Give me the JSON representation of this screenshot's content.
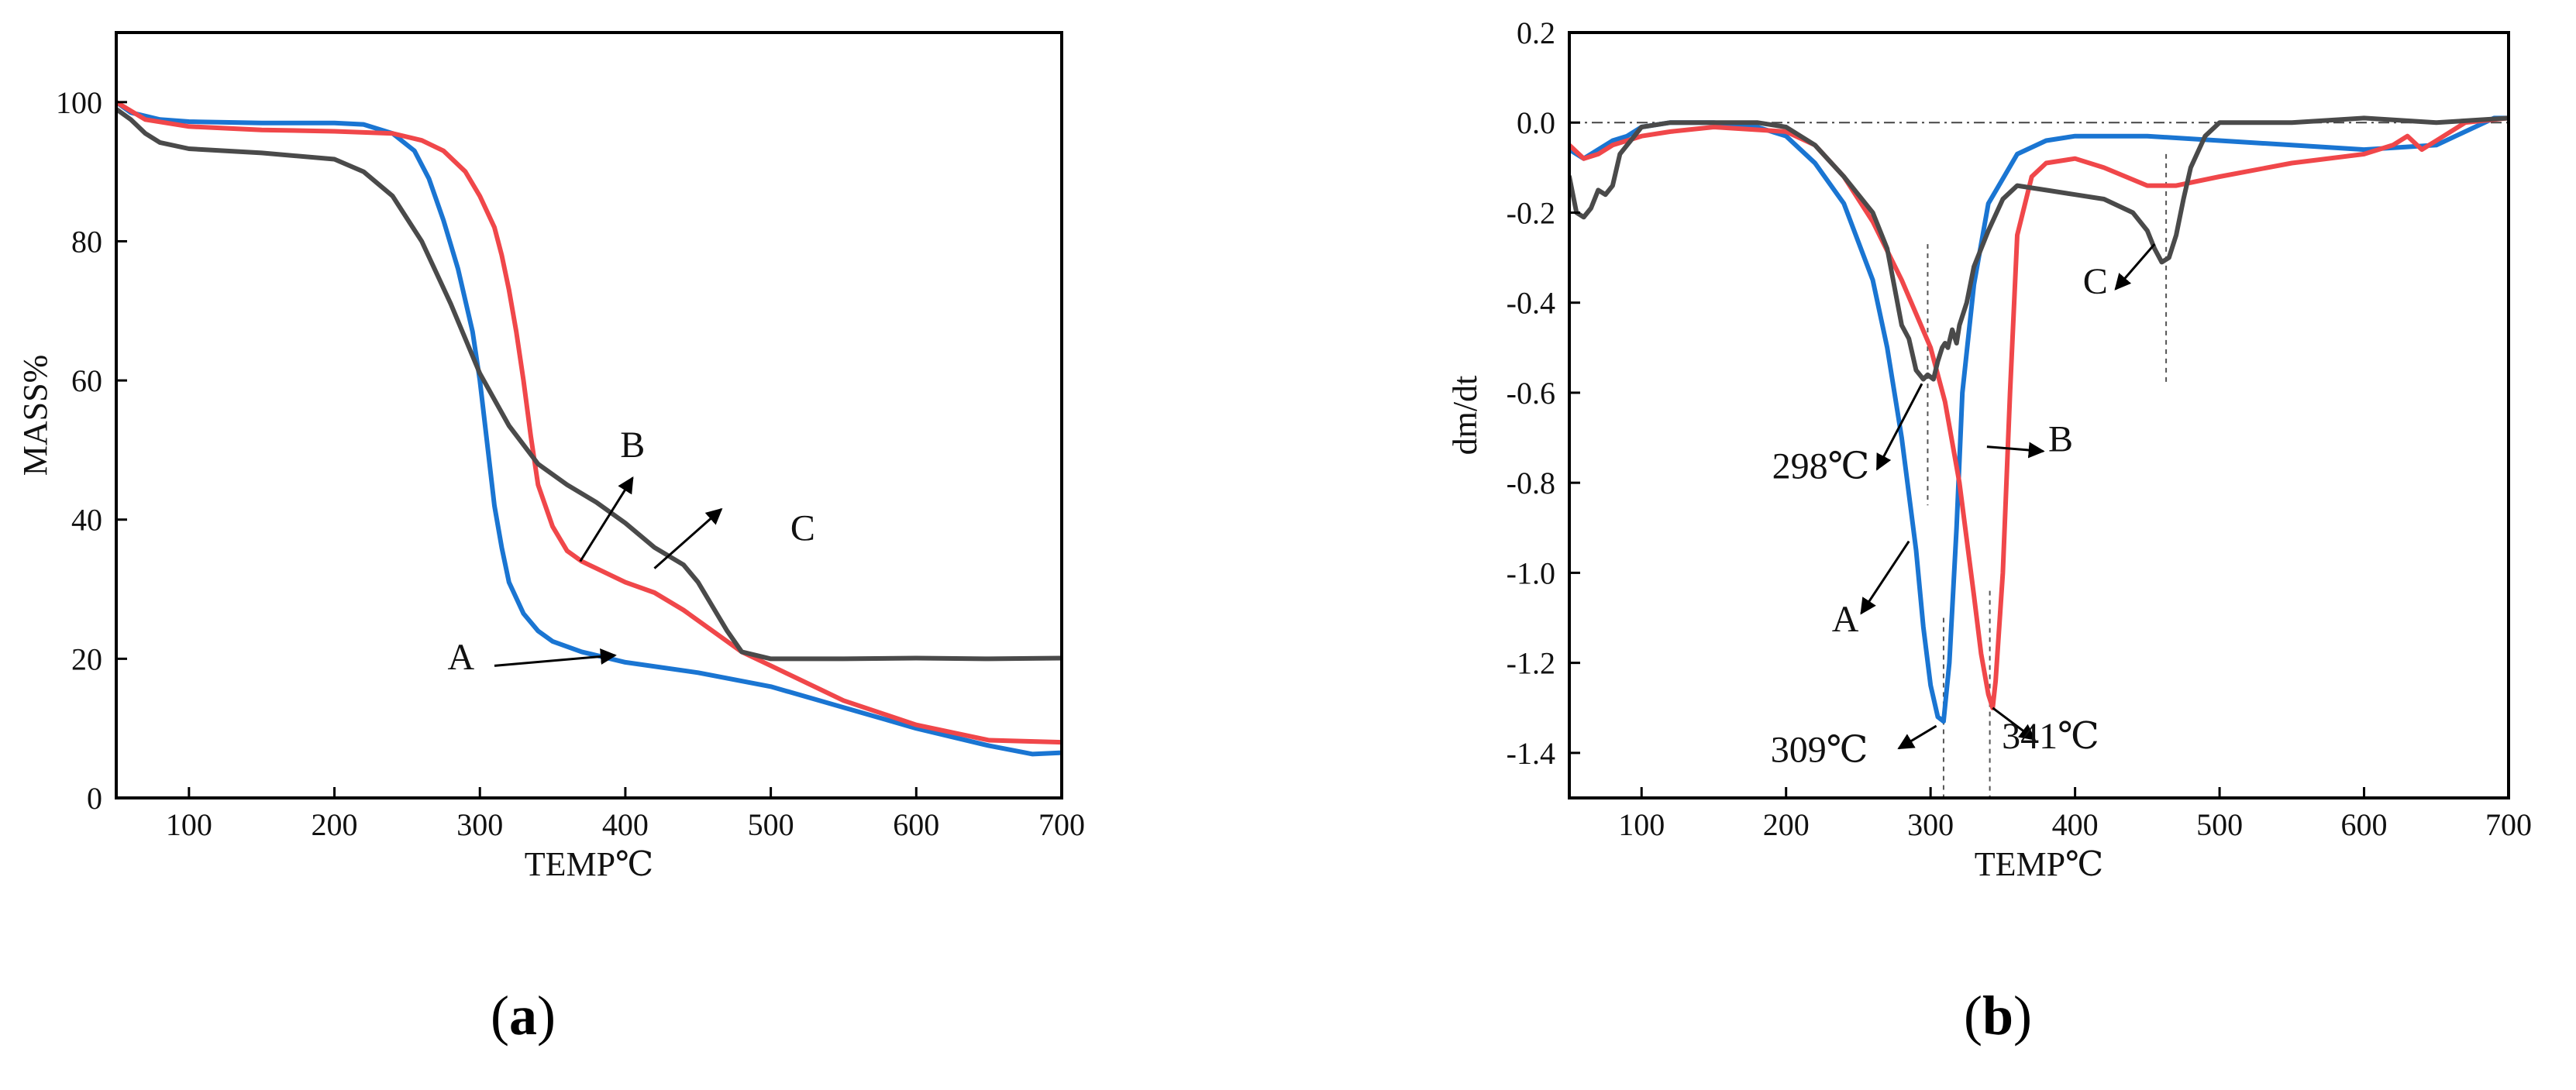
{
  "chart_data": [
    {
      "type": "line",
      "panel_label": "a",
      "xlabel": "TEMP℃",
      "ylabel": "MASS%",
      "xlim": [
        50,
        700
      ],
      "ylim": [
        0,
        110
      ],
      "xticks": [
        100,
        200,
        300,
        400,
        500,
        600,
        700
      ],
      "yticks": [
        0,
        20,
        40,
        60,
        80,
        100
      ],
      "grid": false,
      "series": [
        {
          "name": "A",
          "color": "#1a75d2",
          "x": [
            50,
            60,
            80,
            100,
            150,
            200,
            220,
            240,
            255,
            265,
            275,
            285,
            295,
            300,
            305,
            310,
            315,
            320,
            330,
            340,
            350,
            370,
            400,
            450,
            500,
            550,
            600,
            650,
            680,
            700
          ],
          "y": [
            100,
            98.5,
            97.5,
            97.2,
            97,
            97,
            96.8,
            95.5,
            93,
            89,
            83,
            76,
            67,
            60,
            51,
            42,
            36,
            31,
            26.5,
            24,
            22.5,
            21,
            19.5,
            18,
            16,
            13,
            10,
            7.5,
            6.3,
            6.5
          ]
        },
        {
          "name": "B",
          "color": "#f0474a",
          "x": [
            50,
            70,
            100,
            150,
            200,
            240,
            260,
            275,
            290,
            300,
            310,
            315,
            320,
            325,
            330,
            335,
            340,
            350,
            360,
            370,
            380,
            400,
            420,
            440,
            460,
            480,
            500,
            550,
            600,
            650,
            700
          ],
          "y": [
            100,
            97.5,
            96.5,
            96,
            95.8,
            95.5,
            94.5,
            93,
            90,
            86.5,
            82,
            78,
            73,
            67,
            60,
            52,
            45,
            39,
            35.5,
            34,
            33,
            31,
            29.5,
            27,
            24,
            21,
            19,
            14,
            10.5,
            8.3,
            8
          ]
        },
        {
          "name": "C",
          "color": "#4a4a4a",
          "x": [
            50,
            60,
            70,
            80,
            100,
            150,
            200,
            220,
            240,
            260,
            280,
            300,
            320,
            340,
            360,
            380,
            400,
            420,
            440,
            450,
            460,
            470,
            480,
            500,
            550,
            600,
            650,
            700
          ],
          "y": [
            99,
            97.5,
            95.5,
            94.2,
            93.3,
            92.7,
            91.8,
            90,
            86.5,
            80,
            71,
            61,
            53.5,
            48,
            45,
            42.5,
            39.5,
            36,
            33.5,
            31,
            27.5,
            24,
            21,
            20,
            20,
            20.1,
            20,
            20.1
          ]
        }
      ],
      "annotations": [
        {
          "text": "A",
          "data_x": 287,
          "data_y": 18.5
        },
        {
          "text": "B",
          "data_x": 405,
          "data_y": 49
        },
        {
          "text": "C",
          "data_x": 522,
          "data_y": 37
        }
      ],
      "arrows": [
        {
          "from": [
            310,
            19
          ],
          "to": [
            393,
            20.5
          ]
        },
        {
          "from": [
            369,
            34
          ],
          "to": [
            405,
            46
          ]
        },
        {
          "from": [
            420,
            33
          ],
          "to": [
            466,
            41.5
          ]
        }
      ]
    },
    {
      "type": "line",
      "panel_label": "b",
      "xlabel": "TEMP℃",
      "ylabel": "dm/dt",
      "xlim": [
        50,
        700
      ],
      "ylim": [
        -1.5,
        0.2
      ],
      "xticks": [
        100,
        200,
        300,
        400,
        500,
        600,
        700
      ],
      "yticks": [
        0.2,
        0.0,
        -0.2,
        -0.4,
        -0.6,
        -0.8,
        -1.0,
        -1.2,
        -1.4
      ],
      "grid": false,
      "reference_line_y": 0.0,
      "series": [
        {
          "name": "A",
          "color": "#1a75d2",
          "x": [
            50,
            60,
            70,
            80,
            90,
            100,
            120,
            150,
            180,
            200,
            220,
            240,
            260,
            270,
            280,
            290,
            295,
            300,
            305,
            309,
            313,
            318,
            322,
            330,
            340,
            360,
            380,
            400,
            420,
            450,
            500,
            550,
            600,
            650,
            690,
            700
          ],
          "y": [
            -0.06,
            -0.08,
            -0.06,
            -0.04,
            -0.03,
            -0.01,
            0,
            0,
            -0.01,
            -0.03,
            -0.09,
            -0.18,
            -0.35,
            -0.5,
            -0.7,
            -0.95,
            -1.12,
            -1.25,
            -1.32,
            -1.33,
            -1.2,
            -0.9,
            -0.6,
            -0.36,
            -0.18,
            -0.07,
            -0.04,
            -0.03,
            -0.03,
            -0.03,
            -0.04,
            -0.05,
            -0.06,
            -0.05,
            0.01,
            0.01
          ]
        },
        {
          "name": "B",
          "color": "#f0474a",
          "x": [
            50,
            60,
            70,
            80,
            90,
            100,
            120,
            150,
            200,
            220,
            240,
            260,
            280,
            300,
            310,
            320,
            330,
            335,
            340,
            343,
            345,
            350,
            355,
            360,
            370,
            380,
            400,
            420,
            450,
            460,
            470,
            500,
            550,
            600,
            620,
            630,
            640,
            650,
            670,
            700
          ],
          "y": [
            -0.05,
            -0.08,
            -0.07,
            -0.05,
            -0.04,
            -0.03,
            -0.02,
            -0.01,
            -0.02,
            -0.05,
            -0.12,
            -0.22,
            -0.35,
            -0.5,
            -0.62,
            -0.8,
            -1.05,
            -1.18,
            -1.27,
            -1.3,
            -1.24,
            -1.0,
            -0.6,
            -0.25,
            -0.12,
            -0.09,
            -0.08,
            -0.1,
            -0.14,
            -0.14,
            -0.14,
            -0.12,
            -0.09,
            -0.07,
            -0.05,
            -0.03,
            -0.06,
            -0.04,
            0.0,
            0.01
          ]
        },
        {
          "name": "C",
          "color": "#4a4a4a",
          "x": [
            50,
            55,
            60,
            65,
            70,
            75,
            80,
            85,
            90,
            95,
            100,
            120,
            150,
            180,
            200,
            220,
            240,
            260,
            270,
            280,
            285,
            290,
            295,
            298,
            302,
            305,
            308,
            310,
            312,
            315,
            318,
            320,
            325,
            330,
            340,
            350,
            360,
            380,
            400,
            420,
            440,
            450,
            455,
            460,
            465,
            470,
            475,
            480,
            490,
            500,
            520,
            550,
            600,
            650,
            700
          ],
          "y": [
            -0.12,
            -0.2,
            -0.21,
            -0.19,
            -0.15,
            -0.16,
            -0.14,
            -0.07,
            -0.05,
            -0.03,
            -0.01,
            0,
            0,
            0,
            -0.01,
            -0.05,
            -0.12,
            -0.2,
            -0.28,
            -0.45,
            -0.48,
            -0.55,
            -0.57,
            -0.56,
            -0.57,
            -0.53,
            -0.5,
            -0.49,
            -0.5,
            -0.46,
            -0.49,
            -0.45,
            -0.4,
            -0.32,
            -0.24,
            -0.17,
            -0.14,
            -0.15,
            -0.16,
            -0.17,
            -0.2,
            -0.24,
            -0.28,
            -0.31,
            -0.3,
            -0.25,
            -0.17,
            -0.1,
            -0.03,
            0,
            0,
            0,
            0.01,
            0,
            0.01
          ]
        }
      ],
      "peak_markers": [
        {
          "x": 298,
          "y_top": -0.27,
          "y_bottom": -0.85
        },
        {
          "x": 309,
          "y_top": -1.1,
          "y_bottom": -1.5
        },
        {
          "x": 341,
          "y_top": -1.04,
          "y_bottom": -1.5
        },
        {
          "x": 463,
          "y_top": -0.07,
          "y_bottom": -0.58
        }
      ],
      "annotations": [
        {
          "text": "298℃",
          "data_x": 224,
          "data_y": -0.79,
          "color": "#222222"
        },
        {
          "text": "309℃",
          "data_x": 223,
          "data_y": -1.42,
          "color": "#1a88c8"
        },
        {
          "text": "341℃",
          "data_x": 383,
          "data_y": -1.39,
          "color": "#f0343a"
        },
        {
          "text": "A",
          "data_x": 241,
          "data_y": -1.13,
          "color": "#222222"
        },
        {
          "text": "B",
          "data_x": 390,
          "data_y": -0.73,
          "color": "#222222"
        },
        {
          "text": "C",
          "data_x": 414,
          "data_y": -0.38,
          "color": "#222222"
        }
      ],
      "arrows": [
        {
          "from": [
            294,
            -0.58
          ],
          "to": [
            263,
            -0.77
          ]
        },
        {
          "from": [
            304,
            -1.34
          ],
          "to": [
            278,
            -1.39
          ]
        },
        {
          "from": [
            343,
            -1.3
          ],
          "to": [
            372,
            -1.37
          ]
        },
        {
          "from": [
            285,
            -0.93
          ],
          "to": [
            252,
            -1.09
          ]
        },
        {
          "from": [
            339,
            -0.72
          ],
          "to": [
            378,
            -0.73
          ]
        },
        {
          "from": [
            455,
            -0.27
          ],
          "to": [
            428,
            -0.37
          ]
        }
      ]
    }
  ]
}
